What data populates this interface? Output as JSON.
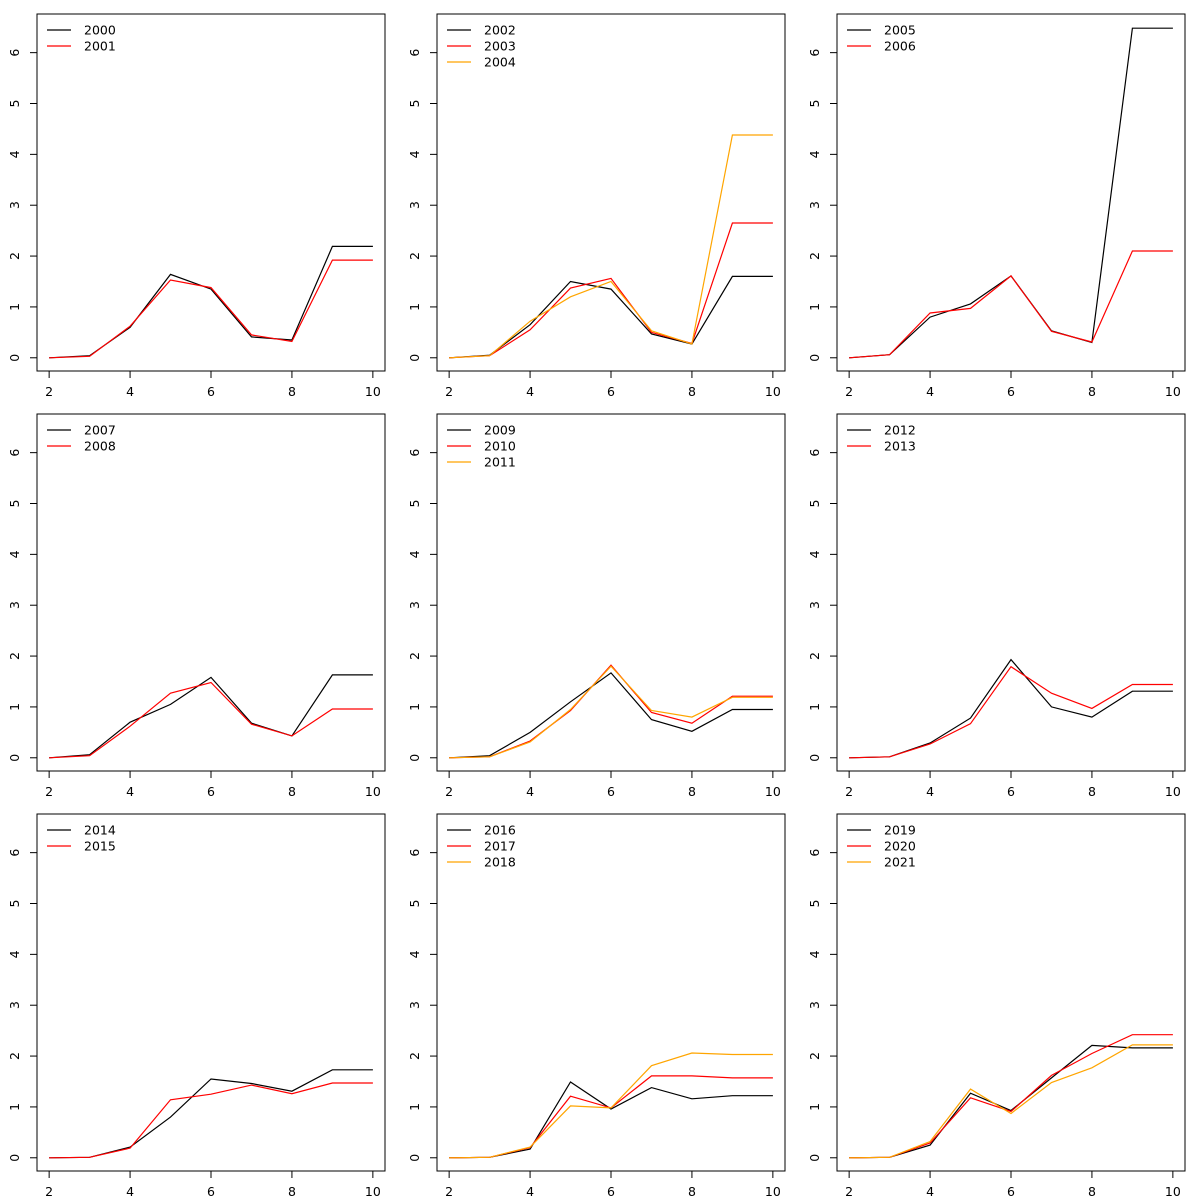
{
  "chart_data": [
    {
      "type": "line",
      "x": [
        2,
        3,
        4,
        5,
        6,
        7,
        8,
        9,
        10
      ],
      "xlim": [
        1.7,
        10.3
      ],
      "ylim": [
        -0.26,
        6.76
      ],
      "xticks": [
        "2",
        "4",
        "6",
        "8",
        "10"
      ],
      "yticks": [
        "0",
        "1",
        "2",
        "3",
        "4",
        "5",
        "6"
      ],
      "legend_position": "top-left",
      "series": [
        {
          "name": "2000",
          "color": "#000000",
          "values": [
            0,
            0.04,
            0.6,
            1.64,
            1.35,
            0.41,
            0.35,
            2.19,
            2.19
          ]
        },
        {
          "name": "2001",
          "color": "#ff0000",
          "values": [
            0,
            0.03,
            0.62,
            1.53,
            1.38,
            0.45,
            0.32,
            1.92,
            1.92
          ]
        }
      ]
    },
    {
      "type": "line",
      "x": [
        2,
        3,
        4,
        5,
        6,
        7,
        8,
        9,
        10
      ],
      "xlim": [
        1.7,
        10.3
      ],
      "ylim": [
        -0.26,
        6.76
      ],
      "xticks": [
        "2",
        "4",
        "6",
        "8",
        "10"
      ],
      "yticks": [
        "0",
        "1",
        "2",
        "3",
        "4",
        "5",
        "6"
      ],
      "legend_position": "top-left",
      "series": [
        {
          "name": "2002",
          "color": "#000000",
          "values": [
            0,
            0.05,
            0.65,
            1.5,
            1.35,
            0.47,
            0.27,
            1.6,
            1.6
          ]
        },
        {
          "name": "2003",
          "color": "#ff0000",
          "values": [
            0,
            0.04,
            0.55,
            1.37,
            1.56,
            0.5,
            0.28,
            2.65,
            2.65
          ]
        },
        {
          "name": "2004",
          "color": "#ffa500",
          "values": [
            0,
            0.04,
            0.72,
            1.2,
            1.5,
            0.53,
            0.27,
            4.38,
            4.38
          ]
        }
      ]
    },
    {
      "type": "line",
      "x": [
        2,
        3,
        4,
        5,
        6,
        7,
        8,
        9,
        10
      ],
      "xlim": [
        1.7,
        10.3
      ],
      "ylim": [
        -0.26,
        6.76
      ],
      "xticks": [
        "2",
        "4",
        "6",
        "8",
        "10"
      ],
      "yticks": [
        "0",
        "1",
        "2",
        "3",
        "4",
        "5",
        "6"
      ],
      "legend_position": "top-left",
      "series": [
        {
          "name": "2005",
          "color": "#000000",
          "values": [
            0,
            0.06,
            0.8,
            1.06,
            1.61,
            0.53,
            0.3,
            6.48,
            6.48
          ]
        },
        {
          "name": "2006",
          "color": "#ff0000",
          "values": [
            0,
            0.06,
            0.88,
            0.97,
            1.61,
            0.52,
            0.31,
            2.1,
            2.1
          ]
        }
      ]
    },
    {
      "type": "line",
      "x": [
        2,
        3,
        4,
        5,
        6,
        7,
        8,
        9,
        10
      ],
      "xlim": [
        1.7,
        10.3
      ],
      "ylim": [
        -0.26,
        6.76
      ],
      "xticks": [
        "2",
        "4",
        "6",
        "8",
        "10"
      ],
      "yticks": [
        "0",
        "1",
        "2",
        "3",
        "4",
        "5",
        "6"
      ],
      "legend_position": "top-left",
      "series": [
        {
          "name": "2007",
          "color": "#000000",
          "values": [
            0,
            0.06,
            0.7,
            1.05,
            1.58,
            0.68,
            0.43,
            1.63,
            1.63
          ]
        },
        {
          "name": "2008",
          "color": "#ff0000",
          "values": [
            0,
            0.04,
            0.62,
            1.27,
            1.48,
            0.66,
            0.43,
            0.96,
            0.96
          ]
        }
      ]
    },
    {
      "type": "line",
      "x": [
        2,
        3,
        4,
        5,
        6,
        7,
        8,
        9,
        10
      ],
      "xlim": [
        1.7,
        10.3
      ],
      "ylim": [
        -0.26,
        6.76
      ],
      "xticks": [
        "2",
        "4",
        "6",
        "8",
        "10"
      ],
      "yticks": [
        "0",
        "1",
        "2",
        "3",
        "4",
        "5",
        "6"
      ],
      "legend_position": "top-left",
      "series": [
        {
          "name": "2009",
          "color": "#000000",
          "values": [
            0,
            0.04,
            0.5,
            1.1,
            1.67,
            0.75,
            0.52,
            0.95,
            0.95
          ]
        },
        {
          "name": "2010",
          "color": "#ff0000",
          "values": [
            0,
            0.02,
            0.33,
            0.93,
            1.82,
            0.89,
            0.68,
            1.21,
            1.21
          ]
        },
        {
          "name": "2011",
          "color": "#ffa500",
          "values": [
            0,
            0.02,
            0.31,
            0.95,
            1.8,
            0.93,
            0.8,
            1.19,
            1.19
          ]
        }
      ]
    },
    {
      "type": "line",
      "x": [
        2,
        3,
        4,
        5,
        6,
        7,
        8,
        9,
        10
      ],
      "xlim": [
        1.7,
        10.3
      ],
      "ylim": [
        -0.26,
        6.76
      ],
      "xticks": [
        "2",
        "4",
        "6",
        "8",
        "10"
      ],
      "yticks": [
        "0",
        "1",
        "2",
        "3",
        "4",
        "5",
        "6"
      ],
      "legend_position": "top-left",
      "series": [
        {
          "name": "2012",
          "color": "#000000",
          "values": [
            0,
            0.02,
            0.29,
            0.78,
            1.93,
            1.0,
            0.8,
            1.31,
            1.31
          ]
        },
        {
          "name": "2013",
          "color": "#ff0000",
          "values": [
            0,
            0.02,
            0.27,
            0.67,
            1.79,
            1.27,
            0.97,
            1.44,
            1.44
          ]
        }
      ]
    },
    {
      "type": "line",
      "x": [
        2,
        3,
        4,
        5,
        6,
        7,
        8,
        9,
        10
      ],
      "xlim": [
        1.7,
        10.3
      ],
      "ylim": [
        -0.26,
        6.76
      ],
      "xticks": [
        "2",
        "4",
        "6",
        "8",
        "10"
      ],
      "yticks": [
        "0",
        "1",
        "2",
        "3",
        "4",
        "5",
        "6"
      ],
      "legend_position": "top-left",
      "series": [
        {
          "name": "2014",
          "color": "#000000",
          "values": [
            0,
            0.01,
            0.21,
            0.8,
            1.55,
            1.46,
            1.31,
            1.73,
            1.73
          ]
        },
        {
          "name": "2015",
          "color": "#ff0000",
          "values": [
            0,
            0.01,
            0.19,
            1.14,
            1.25,
            1.43,
            1.26,
            1.47,
            1.47
          ]
        }
      ]
    },
    {
      "type": "line",
      "x": [
        2,
        3,
        4,
        5,
        6,
        7,
        8,
        9,
        10
      ],
      "xlim": [
        1.7,
        10.3
      ],
      "ylim": [
        -0.26,
        6.76
      ],
      "xticks": [
        "2",
        "4",
        "6",
        "8",
        "10"
      ],
      "yticks": [
        "0",
        "1",
        "2",
        "3",
        "4",
        "5",
        "6"
      ],
      "legend_position": "top-left",
      "series": [
        {
          "name": "2016",
          "color": "#000000",
          "values": [
            0,
            0.01,
            0.17,
            1.49,
            0.96,
            1.38,
            1.16,
            1.22,
            1.22
          ]
        },
        {
          "name": "2017",
          "color": "#ff0000",
          "values": [
            0,
            0.01,
            0.2,
            1.21,
            0.98,
            1.61,
            1.61,
            1.57,
            1.57
          ]
        },
        {
          "name": "2018",
          "color": "#ffa500",
          "values": [
            0,
            0.01,
            0.21,
            1.02,
            0.98,
            1.81,
            2.06,
            2.03,
            2.03
          ]
        }
      ]
    },
    {
      "type": "line",
      "x": [
        2,
        3,
        4,
        5,
        6,
        7,
        8,
        9,
        10
      ],
      "xlim": [
        1.7,
        10.3
      ],
      "ylim": [
        -0.26,
        6.76
      ],
      "xticks": [
        "2",
        "4",
        "6",
        "8",
        "10"
      ],
      "yticks": [
        "0",
        "1",
        "2",
        "3",
        "4",
        "5",
        "6"
      ],
      "legend_position": "top-left",
      "series": [
        {
          "name": "2019",
          "color": "#000000",
          "values": [
            0,
            0.01,
            0.25,
            1.27,
            0.93,
            1.57,
            2.21,
            2.16,
            2.16
          ]
        },
        {
          "name": "2020",
          "color": "#ff0000",
          "values": [
            0,
            0.01,
            0.29,
            1.18,
            0.91,
            1.62,
            2.05,
            2.42,
            2.42
          ]
        },
        {
          "name": "2021",
          "color": "#ffa500",
          "values": [
            0,
            0.01,
            0.32,
            1.35,
            0.87,
            1.48,
            1.77,
            2.22,
            2.22
          ]
        }
      ]
    }
  ]
}
